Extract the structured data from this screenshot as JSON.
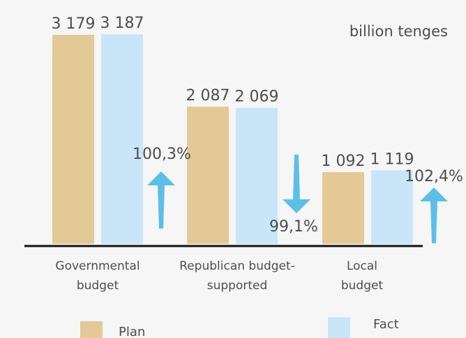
{
  "chart_data": {
    "type": "bar",
    "unit_label": "billion tenges",
    "categories": [
      [
        "Governmental",
        "budget"
      ],
      [
        "Republican budget-",
        "supported"
      ],
      [
        "Local",
        "budget"
      ]
    ],
    "series": [
      {
        "name": "Plan",
        "color": "#e3c995",
        "values": [
          3179,
          2087,
          1092
        ],
        "labels": [
          "3 179",
          "2 087",
          "1 092"
        ]
      },
      {
        "name": "Fact",
        "color": "#c9e6f8",
        "values": [
          3187,
          2069,
          1119
        ],
        "labels": [
          "3 187",
          "2 069",
          "1 119"
        ]
      }
    ],
    "execution": [
      {
        "label": "100,3%",
        "direction": "up"
      },
      {
        "label": "99,1%",
        "direction": "down"
      },
      {
        "label": "102,4%",
        "direction": "up"
      }
    ],
    "arrow_color": "#5bbfe8",
    "ylim": [
      0,
      3200
    ]
  }
}
